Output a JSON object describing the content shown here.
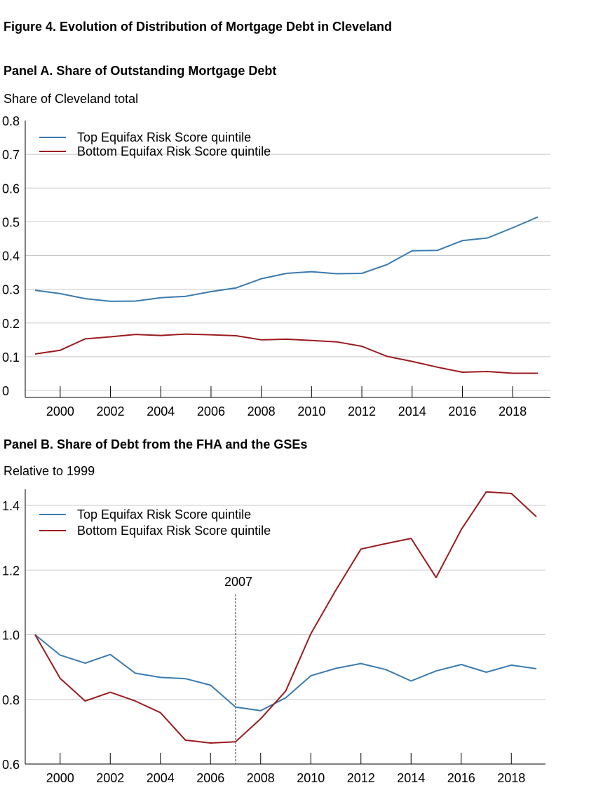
{
  "figure_title": "Figure 4. Evolution of Distribution of Mortgage Debt in  Cleveland",
  "chart_data": [
    {
      "type": "line",
      "panel_title": "Panel A. Share of Outstanding Mortgage Debt",
      "ylabel": "Share of Cleveland total",
      "ylim": [
        0,
        0.8
      ],
      "yticks": [
        "0.8",
        "0.7",
        "0.6",
        "0.5",
        "0.4",
        "0.3",
        "0.2",
        "0.1",
        "0"
      ],
      "xticks": [
        "2000",
        "2002",
        "2004",
        "2006",
        "2008",
        "2010",
        "2012",
        "2014",
        "2016",
        "2018"
      ],
      "x": [
        1999,
        2000,
        2001,
        2002,
        2003,
        2004,
        2005,
        2006,
        2007,
        2008,
        2009,
        2010,
        2011,
        2012,
        2013,
        2014,
        2015,
        2016,
        2017,
        2018,
        2019
      ],
      "grid": true,
      "legend": "top-left",
      "series": [
        {
          "name": "Top Equifax Risk Score quintile",
          "color": "#3a7bb0",
          "values": [
            0.297,
            0.287,
            0.272,
            0.264,
            0.265,
            0.275,
            0.279,
            0.293,
            0.304,
            0.331,
            0.347,
            0.352,
            0.346,
            0.347,
            0.373,
            0.414,
            0.415,
            0.444,
            0.452,
            0.482,
            0.514
          ]
        },
        {
          "name": "Bottom Equifax Risk Score quintile",
          "color": "#9b1b1f",
          "values": [
            0.108,
            0.119,
            0.153,
            0.159,
            0.166,
            0.163,
            0.167,
            0.165,
            0.162,
            0.15,
            0.152,
            0.148,
            0.144,
            0.131,
            0.101,
            0.086,
            0.069,
            0.054,
            0.056,
            0.051,
            0.051
          ]
        }
      ]
    },
    {
      "type": "line",
      "panel_title": "Panel B. Share of Debt from the FHA and the GSEs",
      "ylabel": "Relative to 1999",
      "ylim": [
        0.6,
        1.45
      ],
      "yticks": [
        "1.4",
        "1.2",
        "1.0",
        "0.8",
        "0.6"
      ],
      "xticks": [
        "2000",
        "2002",
        "2004",
        "2006",
        "2008",
        "2010",
        "2012",
        "2014",
        "2016",
        "2018"
      ],
      "x": [
        1999,
        2000,
        2001,
        2002,
        2003,
        2004,
        2005,
        2006,
        2007,
        2008,
        2009,
        2010,
        2011,
        2012,
        2013,
        2014,
        2015,
        2016,
        2017,
        2018,
        2019
      ],
      "grid": true,
      "legend": "top-left",
      "annotation": {
        "x": 2007,
        "label": "2007"
      },
      "series": [
        {
          "name": "Top Equifax Risk Score quintile",
          "color": "#3a7bb0",
          "values": [
            1.0,
            0.937,
            0.912,
            0.939,
            0.881,
            0.868,
            0.864,
            0.844,
            0.776,
            0.765,
            0.805,
            0.873,
            0.896,
            0.911,
            0.892,
            0.857,
            0.888,
            0.908,
            0.884,
            0.906,
            0.895
          ]
        },
        {
          "name": "Bottom Equifax Risk Score quintile",
          "color": "#9b1b1f",
          "values": [
            1.0,
            0.865,
            0.795,
            0.822,
            0.795,
            0.759,
            0.674,
            0.665,
            0.669,
            0.74,
            0.826,
            1.003,
            1.138,
            1.265,
            1.282,
            1.298,
            1.177,
            1.325,
            1.442,
            1.437,
            1.365
          ]
        }
      ]
    }
  ]
}
